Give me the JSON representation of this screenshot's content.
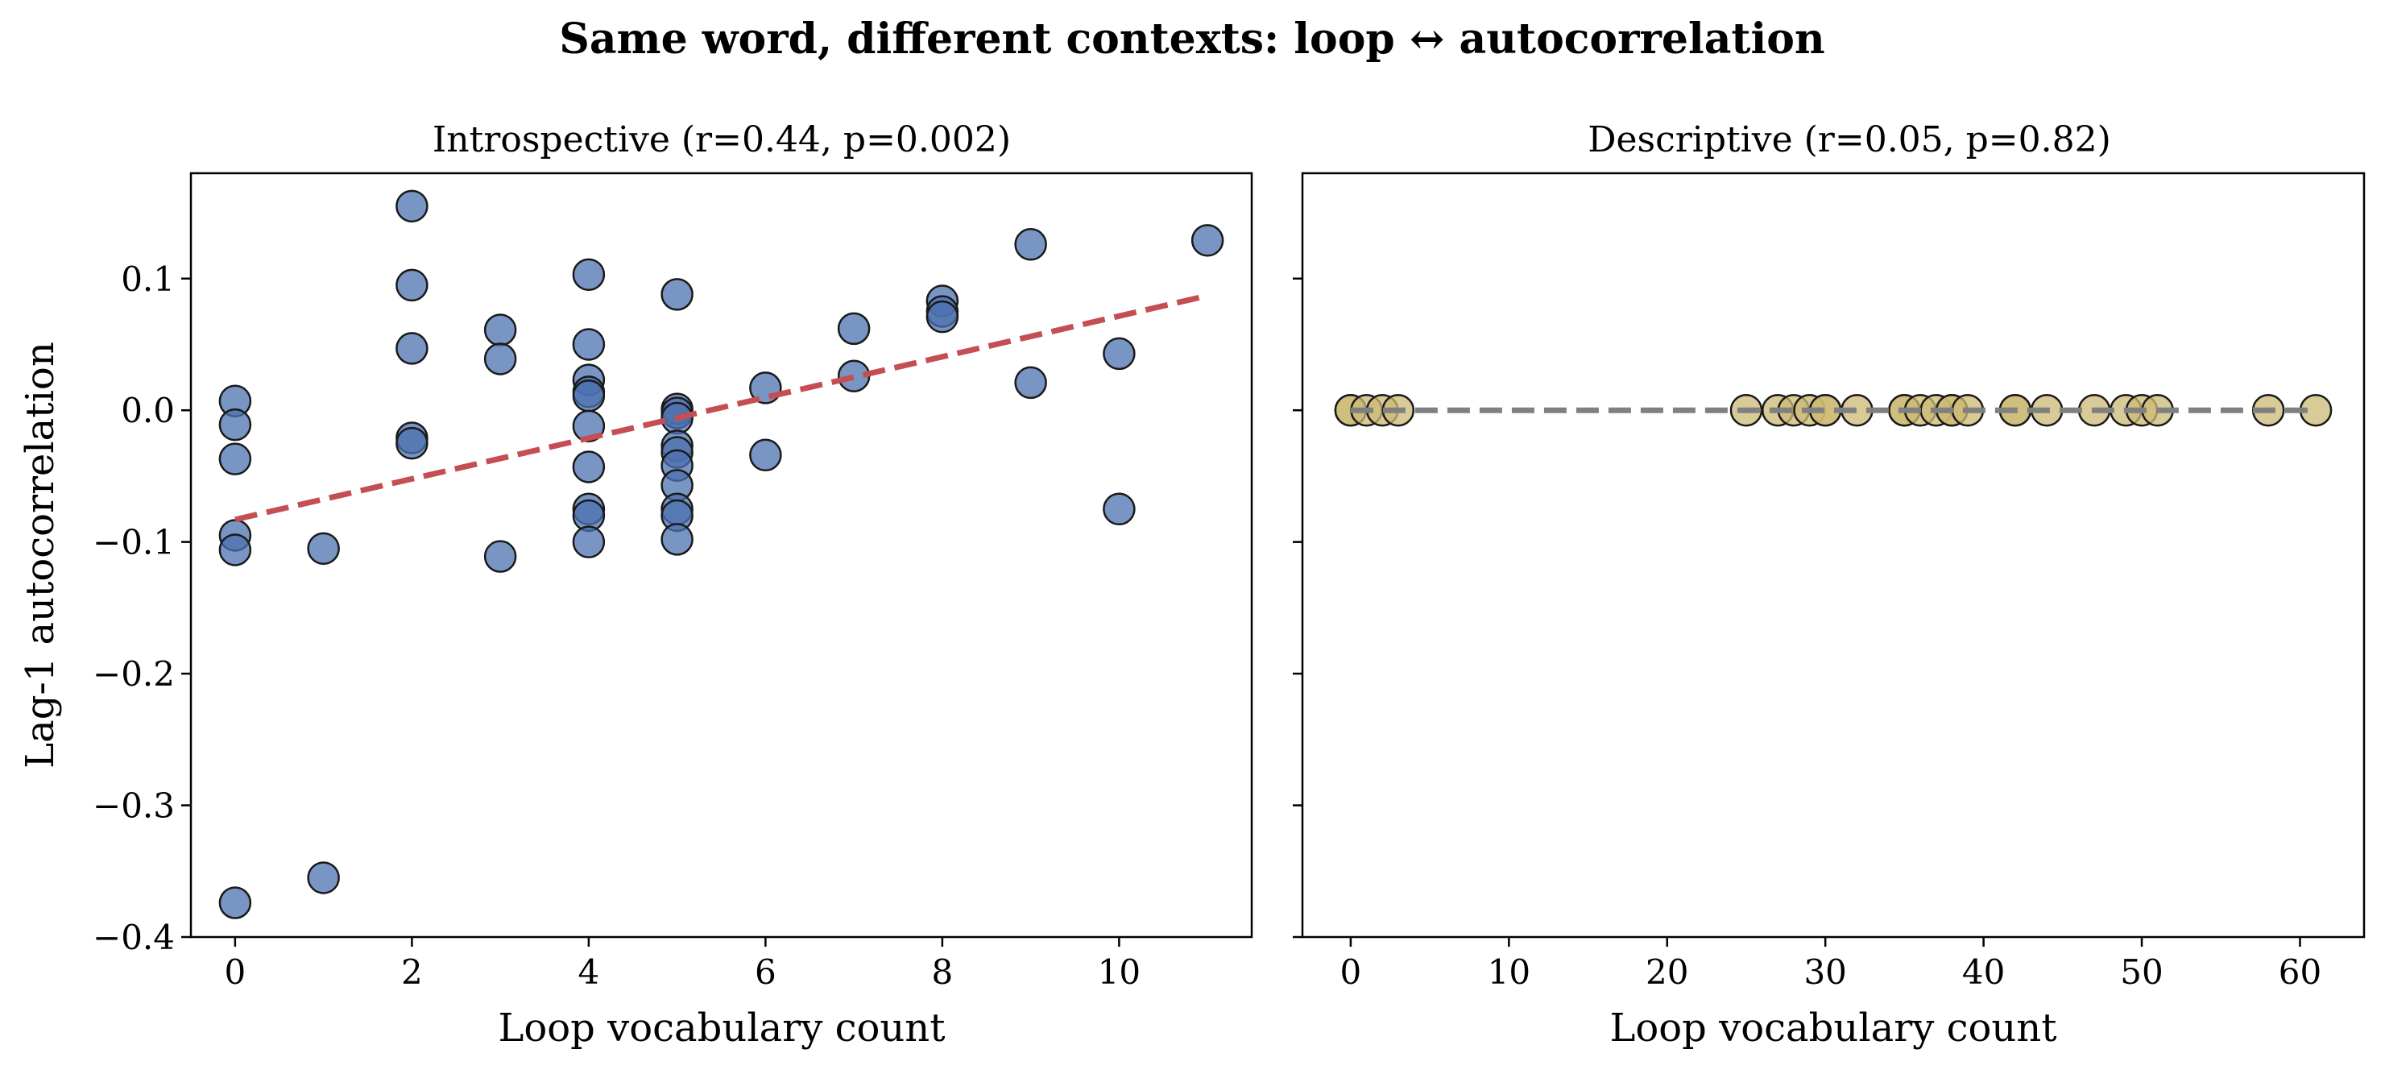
{
  "figure_title": "Same word, different contexts: loop ↔ autocorrelation",
  "chart_data": [
    {
      "type": "scatter",
      "title": "Introspective (r=0.44, p=0.002)",
      "xlabel": "Loop vocabulary count",
      "ylabel": "Lag-1 autocorrelation",
      "xlim": [
        -0.5,
        11.5
      ],
      "ylim": [
        -0.4,
        0.18
      ],
      "xticks": [
        0,
        2,
        4,
        6,
        8,
        10
      ],
      "xtick_labels": [
        "0",
        "2",
        "4",
        "6",
        "8",
        "10"
      ],
      "yticks": [
        -0.4,
        -0.3,
        -0.2,
        -0.1,
        0.0,
        0.1
      ],
      "ytick_labels": [
        "−0.4",
        "−0.3",
        "−0.2",
        "−0.1",
        "0.0",
        "0.1"
      ],
      "grid": false,
      "point_color": "#4c72b0",
      "fit_color": "#c44e52",
      "points": [
        [
          0,
          0.007
        ],
        [
          0,
          -0.011
        ],
        [
          0,
          -0.037
        ],
        [
          0,
          -0.095
        ],
        [
          0,
          -0.106
        ],
        [
          0,
          -0.374
        ],
        [
          1,
          -0.105
        ],
        [
          1,
          -0.355
        ],
        [
          2,
          0.155
        ],
        [
          2,
          0.095
        ],
        [
          2,
          0.047
        ],
        [
          2,
          -0.021
        ],
        [
          2,
          -0.025
        ],
        [
          3,
          0.061
        ],
        [
          3,
          0.039
        ],
        [
          3,
          -0.111
        ],
        [
          4,
          0.103
        ],
        [
          4,
          0.05
        ],
        [
          4,
          0.023
        ],
        [
          4,
          0.014
        ],
        [
          4,
          0.011
        ],
        [
          4,
          -0.012
        ],
        [
          4,
          -0.043
        ],
        [
          4,
          -0.075
        ],
        [
          4,
          -0.08
        ],
        [
          4,
          -0.1
        ],
        [
          5,
          0.088
        ],
        [
          5,
          0.001
        ],
        [
          5,
          -0.002
        ],
        [
          5,
          -0.006
        ],
        [
          5,
          -0.027
        ],
        [
          5,
          -0.032
        ],
        [
          5,
          -0.042
        ],
        [
          5,
          -0.057
        ],
        [
          5,
          -0.075
        ],
        [
          5,
          -0.08
        ],
        [
          5,
          -0.098
        ],
        [
          6,
          0.017
        ],
        [
          6,
          -0.034
        ],
        [
          7,
          0.062
        ],
        [
          7,
          0.026
        ],
        [
          8,
          0.083
        ],
        [
          8,
          0.075
        ],
        [
          8,
          0.071
        ],
        [
          9,
          0.126
        ],
        [
          9,
          0.021
        ],
        [
          10,
          0.043
        ],
        [
          10,
          -0.075
        ],
        [
          11,
          0.129
        ]
      ],
      "fit_line": {
        "x": [
          0,
          11
        ],
        "y": [
          -0.083,
          0.087
        ]
      }
    },
    {
      "type": "scatter",
      "title": "Descriptive (r=0.05, p=0.82)",
      "xlabel": "Loop vocabulary count",
      "ylabel": "",
      "xlim": [
        -3.05,
        64.05
      ],
      "ylim": [
        -0.4,
        0.18
      ],
      "xticks": [
        0,
        10,
        20,
        30,
        40,
        50,
        60
      ],
      "xtick_labels": [
        "0",
        "10",
        "20",
        "30",
        "40",
        "50",
        "60"
      ],
      "yticks": [
        -0.4,
        -0.3,
        -0.2,
        -0.1,
        0.0,
        0.1
      ],
      "grid": false,
      "point_color": "#ccb974",
      "fit_color": "#808080",
      "points": [
        [
          0,
          0
        ],
        [
          0,
          0
        ],
        [
          1,
          0
        ],
        [
          2,
          0
        ],
        [
          3,
          0
        ],
        [
          25,
          0
        ],
        [
          27,
          0
        ],
        [
          28,
          0
        ],
        [
          29,
          0
        ],
        [
          30,
          0
        ],
        [
          30,
          0
        ],
        [
          32,
          0
        ],
        [
          35,
          0
        ],
        [
          35,
          0
        ],
        [
          36,
          0
        ],
        [
          37,
          0
        ],
        [
          38,
          0
        ],
        [
          38,
          0
        ],
        [
          39,
          0
        ],
        [
          42,
          0
        ],
        [
          42,
          0
        ],
        [
          44,
          0
        ],
        [
          47,
          0
        ],
        [
          49,
          0
        ],
        [
          50,
          0
        ],
        [
          51,
          0
        ],
        [
          58,
          0
        ],
        [
          61,
          0
        ]
      ],
      "fit_line": {
        "x": [
          0,
          61
        ],
        "y": [
          0,
          0
        ]
      }
    }
  ]
}
